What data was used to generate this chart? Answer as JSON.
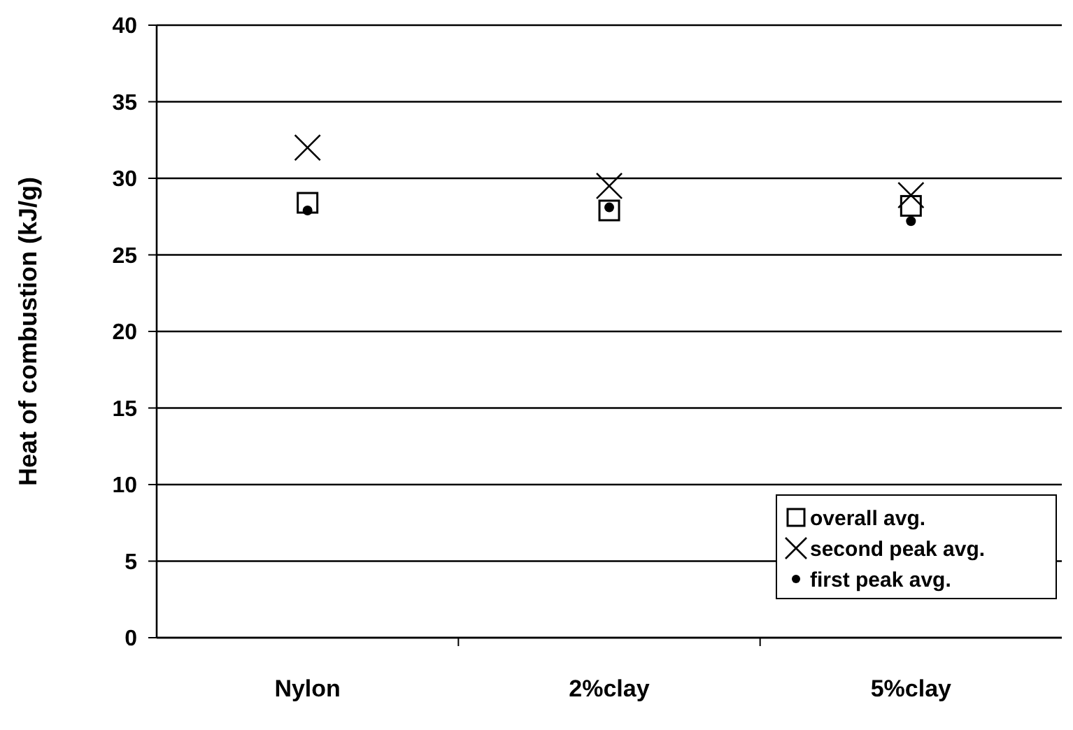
{
  "chart_data": {
    "type": "scatter",
    "ylabel": "Heat of combustion (kJ/g)",
    "categories": [
      "Nylon",
      "2%clay",
      "5%clay"
    ],
    "series": [
      {
        "name": "overall avg.",
        "color": "#000000",
        "marker": "square",
        "values": [
          28.4,
          27.9,
          28.2
        ]
      },
      {
        "name": "second peak avg.",
        "color": "#000000",
        "marker": "cross",
        "values": [
          32.0,
          29.5,
          28.9
        ]
      },
      {
        "name": "first peak avg.",
        "color": "#000000",
        "marker": "circle",
        "values": [
          27.9,
          28.1,
          27.2
        ]
      }
    ],
    "ylim": [
      0,
      40
    ],
    "yticks": [
      0,
      5,
      10,
      15,
      20,
      25,
      30,
      35,
      40
    ],
    "grid": "y",
    "legend": "bottom right"
  }
}
